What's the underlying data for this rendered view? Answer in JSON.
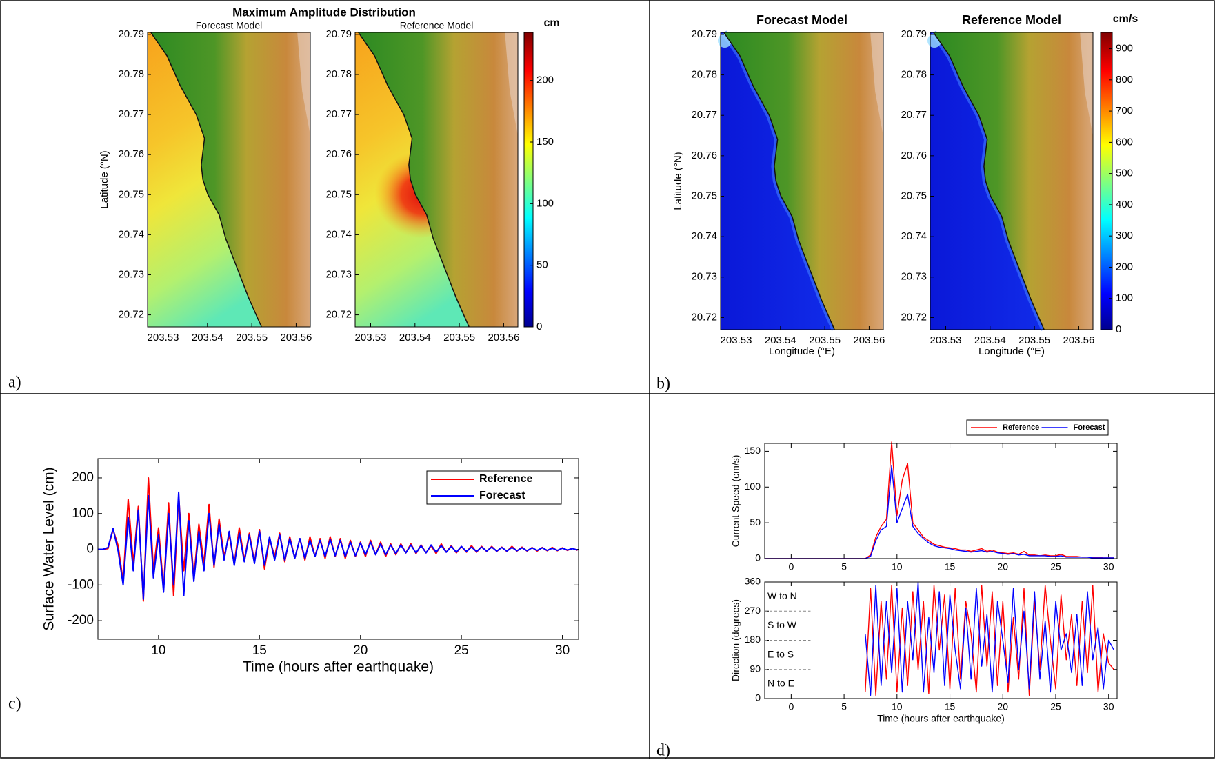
{
  "chart_data": [
    {
      "type": "map",
      "panel_label": "a)",
      "title": "Maximum Amplitude Distribution",
      "maps": [
        {
          "title": "Forecast Model"
        },
        {
          "title": "Reference Model"
        }
      ],
      "ylabel": "Latitude (°N)",
      "xlim": [
        203.5265,
        203.5632
      ],
      "ylim": [
        20.717,
        20.7905
      ],
      "xticks": [
        203.53,
        203.54,
        203.55,
        203.56
      ],
      "yticks": [
        20.72,
        20.73,
        20.74,
        20.75,
        20.76,
        20.77,
        20.78,
        20.79
      ],
      "colorbar": {
        "label": "cm",
        "lim": [
          0,
          239
        ],
        "ticks": [
          0,
          50,
          100,
          150,
          200
        ]
      }
    },
    {
      "type": "map",
      "panel_label": "b)",
      "maps": [
        {
          "title": "Forecast Model"
        },
        {
          "title": "Reference Model"
        }
      ],
      "ylabel": "Latitude (°N)",
      "xlabel": "Longitude (°E)",
      "xlim": [
        203.5265,
        203.5632
      ],
      "ylim": [
        20.717,
        20.7905
      ],
      "xticks": [
        203.53,
        203.54,
        203.55,
        203.56
      ],
      "yticks": [
        20.72,
        20.73,
        20.74,
        20.75,
        20.76,
        20.77,
        20.78,
        20.79
      ],
      "colorbar": {
        "label": "cm/s",
        "lim": [
          0,
          952
        ],
        "ticks": [
          0,
          100,
          200,
          300,
          400,
          500,
          600,
          700,
          800,
          900
        ]
      }
    },
    {
      "type": "line",
      "panel_label": "c)",
      "xlabel": "Time (hours after earthquake)",
      "ylabel": "Surface Water Level (cm)",
      "xlim": [
        7,
        30.8
      ],
      "ylim": [
        -252,
        254
      ],
      "xticks": [
        10,
        15,
        20,
        25,
        30
      ],
      "yticks": [
        -200,
        -100,
        0,
        100,
        200
      ],
      "legend": "upper right",
      "x": [
        7,
        7.25,
        7.5,
        7.75,
        8,
        8.25,
        8.5,
        8.75,
        9,
        9.25,
        9.5,
        9.75,
        10,
        10.25,
        10.5,
        10.75,
        11,
        11.25,
        11.5,
        11.75,
        12,
        12.25,
        12.5,
        12.75,
        13,
        13.25,
        13.5,
        13.75,
        14,
        14.25,
        14.5,
        14.75,
        15,
        15.25,
        15.5,
        15.75,
        16,
        16.25,
        16.5,
        16.75,
        17,
        17.25,
        17.5,
        17.75,
        18,
        18.25,
        18.5,
        18.75,
        19,
        19.25,
        19.5,
        19.75,
        20,
        20.25,
        20.5,
        20.75,
        21,
        21.25,
        21.5,
        21.75,
        22,
        22.25,
        22.5,
        22.75,
        23,
        23.25,
        23.5,
        23.75,
        24,
        24.25,
        24.5,
        24.75,
        25,
        25.25,
        25.5,
        25.75,
        26,
        26.25,
        26.5,
        26.75,
        27,
        27.25,
        27.5,
        27.75,
        28,
        28.25,
        28.5,
        28.75,
        29,
        29.25,
        29.5,
        29.75,
        30,
        30.25,
        30.5,
        30.75
      ],
      "series": [
        {
          "name": "Reference",
          "color": "#ff0000",
          "values": [
            0,
            0,
            2,
            55,
            10,
            -90,
            140,
            -40,
            120,
            -145,
            200,
            -60,
            60,
            -110,
            130,
            -130,
            150,
            -60,
            100,
            -80,
            70,
            -40,
            125,
            -50,
            85,
            -20,
            40,
            -40,
            60,
            -30,
            45,
            -35,
            55,
            -55,
            30,
            -20,
            45,
            -35,
            35,
            -25,
            30,
            -30,
            35,
            -20,
            30,
            -25,
            35,
            -20,
            30,
            -25,
            25,
            -20,
            20,
            -20,
            25,
            -15,
            20,
            -20,
            15,
            -15,
            15,
            -10,
            15,
            -12,
            12,
            -10,
            10,
            -12,
            15,
            -8,
            10,
            -10,
            8,
            -8,
            10,
            -8,
            8,
            -6,
            8,
            -6,
            6,
            -6,
            8,
            -5,
            6,
            -5,
            5,
            -5,
            5,
            -4,
            5,
            -4,
            4,
            -3,
            3,
            -3
          ]
        },
        {
          "name": "Forecast",
          "color": "#0000ff",
          "values": [
            0,
            0,
            5,
            58,
            -5,
            -100,
            90,
            -60,
            110,
            -140,
            150,
            -80,
            40,
            -120,
            100,
            -100,
            160,
            -130,
            80,
            -90,
            50,
            -60,
            100,
            -45,
            70,
            -30,
            50,
            -45,
            45,
            -35,
            40,
            -40,
            50,
            -45,
            35,
            -30,
            40,
            -30,
            30,
            -25,
            30,
            -25,
            25,
            -20,
            25,
            -20,
            28,
            -18,
            25,
            -20,
            20,
            -18,
            18,
            -15,
            20,
            -15,
            15,
            -15,
            12,
            -12,
            12,
            -10,
            12,
            -10,
            10,
            -10,
            12,
            -8,
            10,
            -8,
            8,
            -8,
            8,
            -6,
            6,
            -6,
            6,
            -5,
            6,
            -5,
            5,
            -5,
            5,
            -4,
            4,
            -4,
            4,
            -3,
            4,
            -3,
            3,
            -3,
            3,
            -2,
            2,
            -2
          ]
        }
      ]
    },
    {
      "type": "line",
      "panel_label": "d)",
      "ylabel": "Current Speed (cm/s)",
      "xlim": [
        -2.5,
        30.8
      ],
      "ylim": [
        0,
        161
      ],
      "xticks": [
        0,
        5,
        10,
        15,
        20,
        25,
        30
      ],
      "yticks": [
        0,
        50,
        100,
        150
      ],
      "legend": "top",
      "x": [
        -2.5,
        7,
        7.5,
        8,
        8.5,
        9,
        9.5,
        10,
        10.5,
        11,
        11.5,
        12,
        12.5,
        13,
        13.5,
        14,
        14.5,
        15,
        15.5,
        16,
        16.5,
        17,
        17.5,
        18,
        18.5,
        19,
        19.5,
        20,
        20.5,
        21,
        21.5,
        22,
        22.5,
        23,
        23.5,
        24,
        24.5,
        25,
        25.5,
        26,
        26.5,
        27,
        27.5,
        28,
        28.5,
        29,
        29.5,
        30,
        30.5
      ],
      "series": [
        {
          "name": "Reference",
          "color": "#ff0000",
          "values": [
            0,
            0,
            5,
            30,
            45,
            55,
            163,
            60,
            110,
            133,
            50,
            40,
            30,
            25,
            20,
            18,
            16,
            15,
            14,
            12,
            12,
            10,
            12,
            14,
            10,
            12,
            9,
            8,
            7,
            8,
            6,
            10,
            5,
            5,
            4,
            5,
            4,
            4,
            6,
            3,
            3,
            3,
            2,
            2,
            2,
            2,
            1,
            1,
            1
          ]
        },
        {
          "name": "Forecast",
          "color": "#0000ff",
          "values": [
            0,
            0,
            3,
            25,
            40,
            45,
            130,
            50,
            70,
            90,
            45,
            35,
            28,
            22,
            18,
            16,
            15,
            14,
            12,
            11,
            10,
            9,
            10,
            11,
            9,
            10,
            8,
            7,
            6,
            7,
            5,
            6,
            4,
            4,
            4,
            4,
            3,
            3,
            4,
            2,
            2,
            2,
            2,
            2,
            1,
            1,
            1,
            1,
            1
          ]
        }
      ]
    },
    {
      "type": "line",
      "xlabel": "Time (hours after earthquake)",
      "ylabel": "Direction (degrees)",
      "xlim": [
        -2.5,
        30.8
      ],
      "ylim": [
        0,
        360
      ],
      "xticks": [
        0,
        5,
        10,
        15,
        20,
        25,
        30
      ],
      "yticks": [
        0,
        90,
        180,
        270,
        360
      ],
      "annotations": [
        "W to N",
        "S to W",
        "E to S",
        "N to E"
      ],
      "x": [
        -2.5,
        7,
        7.5,
        8,
        8.5,
        9,
        9.5,
        10,
        10.5,
        11,
        11.5,
        12,
        12.5,
        13,
        13.5,
        14,
        14.5,
        15,
        15.5,
        16,
        16.5,
        17,
        17.5,
        18,
        18.5,
        19,
        19.5,
        20,
        20.5,
        21,
        21.5,
        22,
        22.5,
        23,
        23.5,
        24,
        24.5,
        25,
        25.5,
        26,
        26.5,
        27,
        27.5,
        28,
        28.5,
        29,
        29.5,
        30,
        30.5
      ],
      "series": [
        {
          "color": "#ff0000",
          "values": [
            null,
            20,
            340,
            10,
            300,
            60,
            350,
            20,
            280,
            40,
            330,
            90,
            300,
            15,
            350,
            150,
            320,
            30,
            340,
            60,
            300,
            200,
            20,
            350,
            100,
            330,
            40,
            300,
            20,
            250,
            60,
            340,
            10,
            300,
            90,
            350,
            180,
            30,
            320,
            120,
            260,
            40,
            300,
            80,
            350,
            20,
            200,
            110,
            90
          ]
        },
        {
          "color": "#0000ff",
          "values": [
            null,
            200,
            10,
            350,
            40,
            300,
            80,
            340,
            20,
            300,
            120,
            360,
            20,
            250,
            80,
            330,
            40,
            320,
            150,
            30,
            280,
            60,
            340,
            100,
            260,
            20,
            300,
            180,
            50,
            340,
            90,
            270,
            30,
            330,
            60,
            240,
            20,
            300,
            150,
            200,
            80,
            260,
            40,
            330,
            120,
            220,
            30,
            180,
            150
          ]
        }
      ]
    }
  ]
}
